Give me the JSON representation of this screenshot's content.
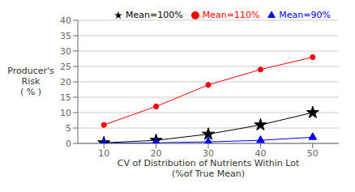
{
  "chart_data": {
    "type": "line",
    "xlabel": "CV of Distribution of Nutrients Within Lot\n(%of True Mean)",
    "ylabel": "Producer's\nRisk\n( % )",
    "x": [
      10,
      20,
      30,
      40,
      50
    ],
    "series": [
      {
        "name": "Mean=110%",
        "color": "#ff0000",
        "marker": "circle",
        "values": [
          6,
          12,
          19,
          24,
          28
        ]
      },
      {
        "name": "Mean=100%",
        "color": "#000000",
        "marker": "star",
        "values": [
          0.2,
          1,
          3,
          6,
          10
        ]
      },
      {
        "name": "Mean=90%",
        "color": "#0000ff",
        "marker": "triangle",
        "values": [
          0.1,
          0.2,
          0.5,
          1,
          2
        ]
      }
    ],
    "xlim": [
      5,
      55
    ],
    "xticks": [
      10,
      20,
      30,
      40,
      50
    ],
    "ylim": [
      0,
      40
    ],
    "yticks": [
      0,
      5,
      10,
      15,
      20,
      25,
      30,
      35,
      40
    ],
    "grid": "y",
    "legend": "upper right"
  }
}
